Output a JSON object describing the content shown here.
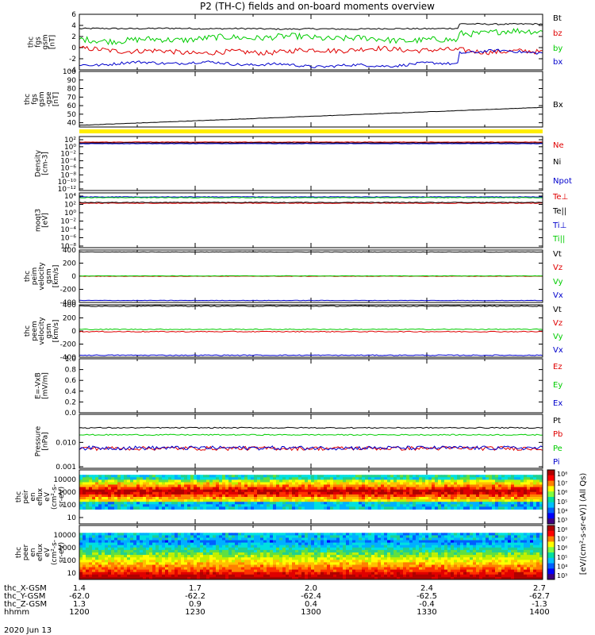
{
  "title": "P2 (TH-C) fields and on-board moments overview",
  "date_label": "2020 Jun 13",
  "colors": {
    "black": "#000000",
    "red": "#e00000",
    "green": "#00cc00",
    "blue": "#0000cc",
    "yellow": "#ffee00"
  },
  "chart_data": [
    {
      "type": "line",
      "id": "fgs",
      "ylabel_lines": [
        "thc",
        "fgs",
        "gsm",
        "[nT]"
      ],
      "ylim": [
        -4,
        6
      ],
      "yticks": [
        "6",
        "4",
        "2",
        "0",
        "-2",
        "-4"
      ],
      "ytick_values": [
        6,
        4,
        2,
        0,
        -2,
        -4
      ],
      "series": [
        {
          "name": "Bt",
          "color": "black",
          "level": 3.4,
          "late_level": 4.2,
          "noise": 0.25
        },
        {
          "name": "bz",
          "color": "red",
          "level": -0.6,
          "late_level": -0.5,
          "noise": 0.9
        },
        {
          "name": "by",
          "color": "green",
          "level": 1.6,
          "late_level": 2.9,
          "noise": 1.1
        },
        {
          "name": "bx",
          "color": "blue",
          "level": -3.0,
          "late_level": -1.0,
          "noise": 0.5
        }
      ]
    },
    {
      "type": "line",
      "id": "fgs-gse",
      "ylabel_lines": [
        "thc",
        "fgs",
        "gsm",
        "-gse",
        "[nT]"
      ],
      "ylim": [
        35,
        100
      ],
      "yticks": [
        "100",
        "90",
        "80",
        "70",
        "60",
        "50",
        "40"
      ],
      "ytick_values": [
        100,
        90,
        80,
        70,
        60,
        50,
        40
      ],
      "series": [
        {
          "name": "Bx",
          "color": "black",
          "start": 37,
          "end": 58
        }
      ]
    },
    {
      "type": "line",
      "id": "density",
      "ylabel_lines": [
        "Density",
        "[cm-3]"
      ],
      "yticks": [
        "10²",
        "10⁰",
        "10⁻²",
        "10⁻⁴",
        "10⁻⁶",
        "10⁻⁸",
        "10⁻¹⁰",
        "10⁻¹²"
      ],
      "series": [
        {
          "name": "Ne",
          "color": "red"
        },
        {
          "name": "Ni",
          "color": "black"
        },
        {
          "name": "Npot",
          "color": "blue"
        }
      ]
    },
    {
      "type": "line",
      "id": "temperature",
      "ylabel_lines": [
        "moqt3",
        "[eV]"
      ],
      "yticks": [
        "10⁴",
        "10²",
        "10⁰",
        "10⁻²",
        "10⁻⁴",
        "10⁻⁶",
        "10⁻⁸"
      ],
      "series": [
        {
          "name": "Te⊥",
          "color": "red"
        },
        {
          "name": "Te||",
          "color": "black"
        },
        {
          "name": "Ti⊥",
          "color": "blue"
        },
        {
          "name": "Ti||",
          "color": "green"
        }
      ]
    },
    {
      "type": "line",
      "id": "peim",
      "ylabel_lines": [
        "thc",
        "peim",
        "velocity",
        "gsm",
        "[km/s]"
      ],
      "ylim": [
        -400,
        400
      ],
      "yticks": [
        "400",
        "200",
        "0",
        "-200",
        "-400"
      ],
      "ytick_values": [
        400,
        200,
        0,
        -200,
        -400
      ],
      "series": [
        {
          "name": "Vt",
          "color": "black",
          "level": 370
        },
        {
          "name": "Vz",
          "color": "red",
          "level": 0
        },
        {
          "name": "Vy",
          "color": "green",
          "level": 5
        },
        {
          "name": "Vx",
          "color": "blue",
          "level": -370
        }
      ]
    },
    {
      "type": "line",
      "id": "peem",
      "ylabel_lines": [
        "thc",
        "peem",
        "velocity",
        "gsm",
        "[km/s]"
      ],
      "ylim": [
        -400,
        400
      ],
      "yticks": [
        "400",
        "200",
        "0",
        "-200",
        "-400"
      ],
      "ytick_values": [
        400,
        200,
        0,
        -200,
        -400
      ],
      "series": [
        {
          "name": "Vt",
          "color": "black",
          "level": 380
        },
        {
          "name": "Vz",
          "color": "red",
          "level": -10
        },
        {
          "name": "Vy",
          "color": "green",
          "level": 25
        },
        {
          "name": "Vx",
          "color": "blue",
          "level": -370
        }
      ]
    },
    {
      "type": "line",
      "id": "efield",
      "ylabel_lines": [
        "E=-VxB",
        "[mV/m]"
      ],
      "ylim": [
        0,
        1
      ],
      "yticks": [
        "1.0",
        "0.8",
        "0.6",
        "0.4",
        "0.2",
        "0.0"
      ],
      "ytick_values": [
        1.0,
        0.8,
        0.6,
        0.4,
        0.2,
        0.0
      ],
      "series": [
        {
          "name": "Ez",
          "color": "red"
        },
        {
          "name": "Ey",
          "color": "green"
        },
        {
          "name": "Ex",
          "color": "blue"
        }
      ]
    },
    {
      "type": "line",
      "id": "pressure",
      "log": true,
      "ylabel_lines": [
        "Pressure",
        "[nPa]"
      ],
      "yticks": [
        "0.010",
        "0.001"
      ],
      "series": [
        {
          "name": "Pt",
          "color": "black",
          "level": 0.03
        },
        {
          "name": "Pb",
          "color": "red",
          "level": 0.0048
        },
        {
          "name": "Pe",
          "color": "green",
          "level": 0.016
        },
        {
          "name": "Pi",
          "color": "blue",
          "level": 0.005
        }
      ]
    },
    {
      "type": "heatmap",
      "id": "peir",
      "ylabel_lines": [
        "thc",
        "peir",
        "en",
        "eflux",
        "eV",
        "(cm²-s-",
        "sr-eV)"
      ],
      "yticks": [
        "10000",
        "1000",
        "100",
        "10"
      ]
    },
    {
      "type": "heatmap",
      "id": "peer",
      "ylabel_lines": [
        "thc",
        "peer",
        "en",
        "eflux",
        "eV",
        "(cm²-s-",
        "sr-eV)"
      ],
      "yticks": [
        "10000",
        "1000",
        "100",
        "10"
      ]
    }
  ],
  "colorbar": {
    "ticks": [
      "10⁸",
      "10⁷",
      "10⁶",
      "10⁵",
      "10⁴",
      "10³"
    ],
    "label": "[eV/(cm²-s-sr-eV)] (All Qs)"
  },
  "x_axis": {
    "rows": [
      {
        "label": "thc_X-GSM",
        "values": [
          "1.4",
          "1.7",
          "2.0",
          "2.4",
          "2.7"
        ]
      },
      {
        "label": "thc_Y-GSM",
        "values": [
          "-62.0",
          "-62.2",
          "-62.4",
          "-62.5",
          "-62.7"
        ]
      },
      {
        "label": "thc_Z-GSM",
        "values": [
          "1.3",
          "0.9",
          "0.4",
          "-0.4",
          "-1.3"
        ]
      },
      {
        "label": "hhmm",
        "values": [
          "1200",
          "1230",
          "1300",
          "1330",
          "1400"
        ]
      }
    ]
  }
}
